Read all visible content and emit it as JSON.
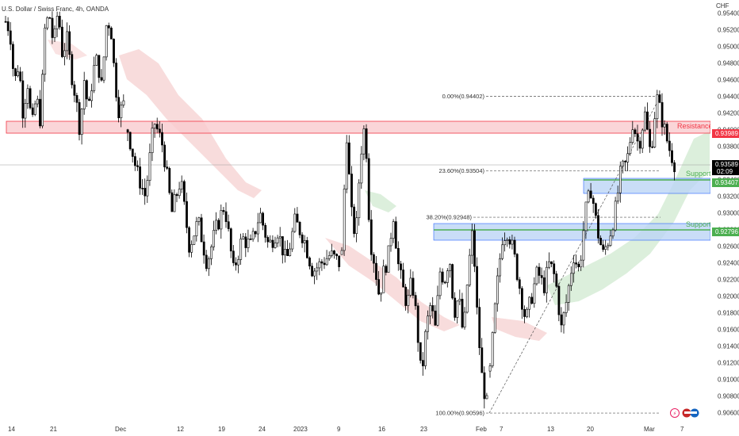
{
  "chart_data": {
    "type": "candlestick",
    "title": "U.S. Dollar / Swiss Franc, 4h, OANDA",
    "currency": "CHF",
    "ylim": [
      0.9053,
      0.9552
    ],
    "y_ticks": [
      "0.95400",
      "0.95200",
      "0.95000",
      "0.94800",
      "0.94600",
      "0.94400",
      "0.94200",
      "0.94000",
      "0.93800",
      "0.93600",
      "0.93400",
      "0.93200",
      "0.93000",
      "0.92800",
      "0.92600",
      "0.92400",
      "0.92200",
      "0.92000",
      "0.91800",
      "0.91600",
      "0.91400",
      "0.91200",
      "0.91000",
      "0.90800",
      "0.90600"
    ],
    "x_ticks": [
      "14",
      "21",
      "Dec",
      "12",
      "19",
      "24",
      "2023",
      "9",
      "16",
      "23",
      "Feb",
      "7",
      "13",
      "20",
      "Mar",
      "7"
    ],
    "path_points": [
      [
        0.953,
        0.952,
        0.9455,
        0.948,
        0.942,
        0.946,
        0.94,
        0.944,
        0.941,
        0.952,
        0.954,
        0.95,
        0.9545,
        0.949,
        0.951,
        0.947,
        0.944,
        0.94,
        0.946,
        0.942,
        0.947,
        0.9485,
        0.945,
        0.9525,
        0.953,
        0.946,
        0.942,
        0.943
      ],
      [
        0.94,
        0.935,
        0.932,
        0.941,
        0.938,
        0.93,
        0.934,
        0.926,
        0.929,
        0.924,
        0.928,
        0.931,
        0.923,
        0.927,
        0.926,
        0.93,
        0.926,
        0.928,
        0.924,
        0.929,
        0.927,
        0.923,
        0.924,
        0.925,
        0.924
      ],
      [
        0.925,
        0.94,
        0.93,
        0.927,
        0.937,
        0.941,
        0.927,
        0.924,
        0.92,
        0.923,
        0.925,
        0.93,
        0.924,
        0.921,
        0.919,
        0.922,
        0.917,
        0.91,
        0.916,
        0.919,
        0.916,
        0.923,
        0.922,
        0.925,
        0.918,
        0.92,
        0.915,
        0.923,
        0.928,
        0.917,
        0.91,
        0.907
      ],
      [
        0.911,
        0.92,
        0.927,
        0.928,
        0.925,
        0.921,
        0.917,
        0.92,
        0.923,
        0.921,
        0.924,
        0.922,
        0.916,
        0.92,
        0.925,
        0.923,
        0.93,
        0.933,
        0.928,
        0.925,
        0.927,
        0.93,
        0.935,
        0.936,
        0.941,
        0.938,
        0.942,
        0.937,
        0.944,
        0.941,
        0.938,
        0.936
      ]
    ],
    "resistance": {
      "label": "Resistance",
      "from": 0.94,
      "to": 0.94148,
      "value": "0.93989"
    },
    "support1": {
      "label": "Support",
      "from": 0.9323,
      "to": 0.9343,
      "value": "0.93407"
    },
    "support2": {
      "label": "Support",
      "from": 0.9266,
      "to": 0.9287,
      "value": "0.92796"
    },
    "current": {
      "value": "0.93589",
      "timer": "02:09"
    },
    "fib_levels": [
      {
        "label": "0.00%(0.94402)",
        "value": 0.94402
      },
      {
        "label": "23.60%(0.93504)",
        "value": 0.93504
      },
      {
        "label": "38.20%(0.92948)",
        "value": 0.92948
      },
      {
        "label": "100.00%(0.90596)",
        "value": 0.90596
      }
    ],
    "colors": {
      "bull": "#ffffff",
      "bear": "#000000",
      "resistance": "#f23645",
      "support": "#4caf50",
      "support_fill": "#bbd4f5",
      "resistance_fill": "#f7c2c6",
      "cloud_red": "#f6d7d7",
      "cloud_green": "#d8ecd9",
      "price_badge": "#000000"
    }
  }
}
